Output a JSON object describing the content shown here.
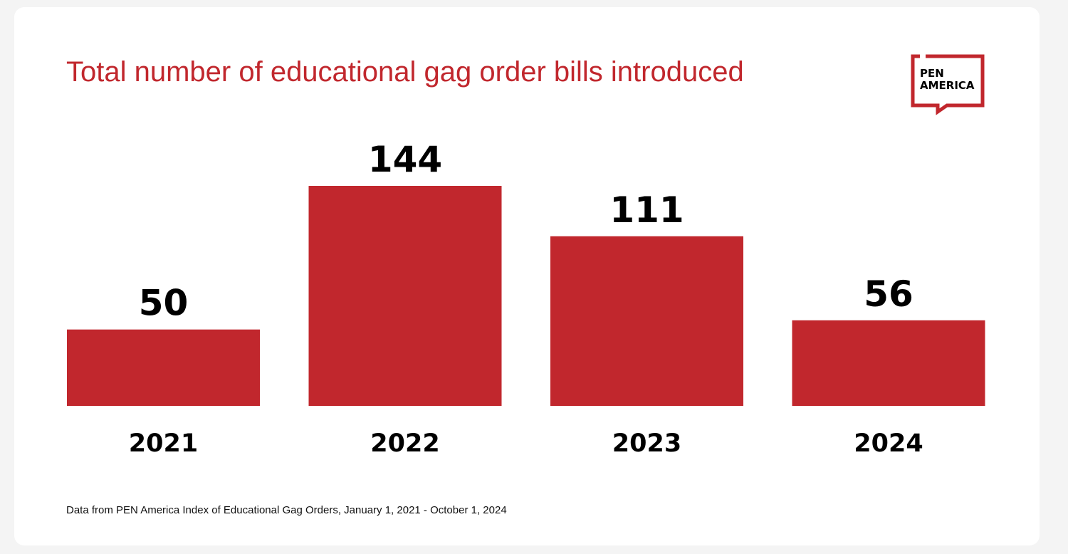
{
  "chart_data": {
    "type": "bar",
    "title": "Total number of educational gag order bills introduced",
    "categories": [
      "2021",
      "2022",
      "2023",
      "2024"
    ],
    "values": [
      50,
      144,
      111,
      56
    ],
    "color": "#c1272d",
    "source": "Data from PEN America Index of Educational Gag Orders, January 1, 2021 - October 1, 2024",
    "logo": {
      "line1": "PEN",
      "line2": "AMERICA"
    }
  }
}
